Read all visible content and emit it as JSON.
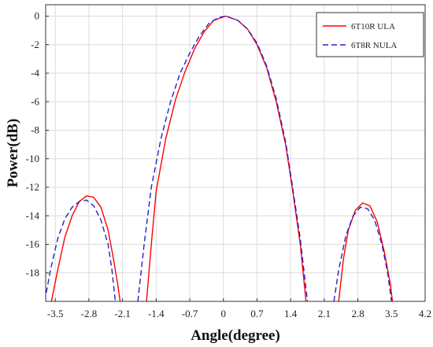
{
  "chart_data": {
    "type": "line",
    "title": "",
    "xlabel": "Angle(degree)",
    "ylabel": "Power(dB)",
    "xlim": [
      -3.7,
      4.2
    ],
    "ylim": [
      -20,
      0.8
    ],
    "xticks": [
      -3.5,
      -2.8,
      -2.1,
      -1.4,
      -0.7,
      0,
      0.7,
      1.4,
      2.1,
      2.8,
      3.5,
      4.2
    ],
    "xtick_labels": [
      "-3.5",
      "-2.8",
      "-2.1",
      "-1.4",
      "-0.7",
      "0",
      "0.7",
      "1.4",
      "2.1",
      "2.8",
      "3.5",
      "4.2"
    ],
    "yticks": [
      0,
      -2,
      -4,
      -6,
      -8,
      -10,
      -12,
      -14,
      -16,
      -18
    ],
    "ytick_labels": [
      "0",
      "-2",
      "-4",
      "-6",
      "-8",
      "-10",
      "-12",
      "-14",
      "-16",
      "-18"
    ],
    "grid": true,
    "legend": "top-right",
    "series": [
      {
        "name": "6T10R ULA",
        "color": "#ff0000",
        "style": "solid",
        "points": [
          [
            -3.58,
            -20
          ],
          [
            -3.45,
            -17.8
          ],
          [
            -3.3,
            -15.5
          ],
          [
            -3.15,
            -14.0
          ],
          [
            -3.0,
            -13.0
          ],
          [
            -2.85,
            -12.6
          ],
          [
            -2.7,
            -12.7
          ],
          [
            -2.55,
            -13.4
          ],
          [
            -2.4,
            -15.0
          ],
          [
            -2.3,
            -16.8
          ],
          [
            -2.2,
            -18.8
          ],
          [
            -2.15,
            -20
          ],
          [
            -1.6,
            -20
          ],
          [
            -1.5,
            -16.0
          ],
          [
            -1.4,
            -12.3
          ],
          [
            -1.2,
            -8.6
          ],
          [
            -1.0,
            -5.9
          ],
          [
            -0.8,
            -3.9
          ],
          [
            -0.6,
            -2.3
          ],
          [
            -0.4,
            -1.1
          ],
          [
            -0.2,
            -0.3
          ],
          [
            0.05,
            0
          ],
          [
            0.3,
            -0.3
          ],
          [
            0.5,
            -0.9
          ],
          [
            0.7,
            -2.0
          ],
          [
            0.9,
            -3.6
          ],
          [
            1.1,
            -6.0
          ],
          [
            1.3,
            -9.1
          ],
          [
            1.45,
            -12.4
          ],
          [
            1.6,
            -16.0
          ],
          [
            1.72,
            -20
          ],
          [
            2.4,
            -20
          ],
          [
            2.5,
            -17.0
          ],
          [
            2.6,
            -15.0
          ],
          [
            2.75,
            -13.6
          ],
          [
            2.9,
            -13.1
          ],
          [
            3.05,
            -13.3
          ],
          [
            3.2,
            -14.4
          ],
          [
            3.35,
            -16.5
          ],
          [
            3.47,
            -18.7
          ],
          [
            3.52,
            -20
          ]
        ]
      },
      {
        "name": "6T8R NULA",
        "color": "#2222cc",
        "style": "dashed",
        "points": [
          [
            -3.72,
            -20
          ],
          [
            -3.6,
            -17.8
          ],
          [
            -3.45,
            -15.6
          ],
          [
            -3.3,
            -14.2
          ],
          [
            -3.15,
            -13.4
          ],
          [
            -3.0,
            -13.0
          ],
          [
            -2.85,
            -12.9
          ],
          [
            -2.7,
            -13.3
          ],
          [
            -2.55,
            -14.3
          ],
          [
            -2.4,
            -16.0
          ],
          [
            -2.32,
            -17.8
          ],
          [
            -2.25,
            -20
          ],
          [
            -1.78,
            -20
          ],
          [
            -1.65,
            -16.0
          ],
          [
            -1.5,
            -12.0
          ],
          [
            -1.3,
            -8.6
          ],
          [
            -1.1,
            -6.0
          ],
          [
            -0.9,
            -4.0
          ],
          [
            -0.7,
            -2.6
          ],
          [
            -0.5,
            -1.4
          ],
          [
            -0.3,
            -0.5
          ],
          [
            -0.1,
            -0.1
          ],
          [
            0.05,
            0
          ],
          [
            0.3,
            -0.3
          ],
          [
            0.5,
            -0.9
          ],
          [
            0.7,
            -1.9
          ],
          [
            0.9,
            -3.5
          ],
          [
            1.1,
            -5.8
          ],
          [
            1.3,
            -8.9
          ],
          [
            1.45,
            -12.2
          ],
          [
            1.6,
            -15.6
          ],
          [
            1.75,
            -20
          ],
          [
            2.3,
            -20
          ],
          [
            2.4,
            -17.8
          ],
          [
            2.55,
            -15.4
          ],
          [
            2.7,
            -14.0
          ],
          [
            2.85,
            -13.4
          ],
          [
            3.0,
            -13.5
          ],
          [
            3.15,
            -14.3
          ],
          [
            3.3,
            -16.0
          ],
          [
            3.42,
            -18.0
          ],
          [
            3.5,
            -20
          ]
        ]
      }
    ]
  }
}
